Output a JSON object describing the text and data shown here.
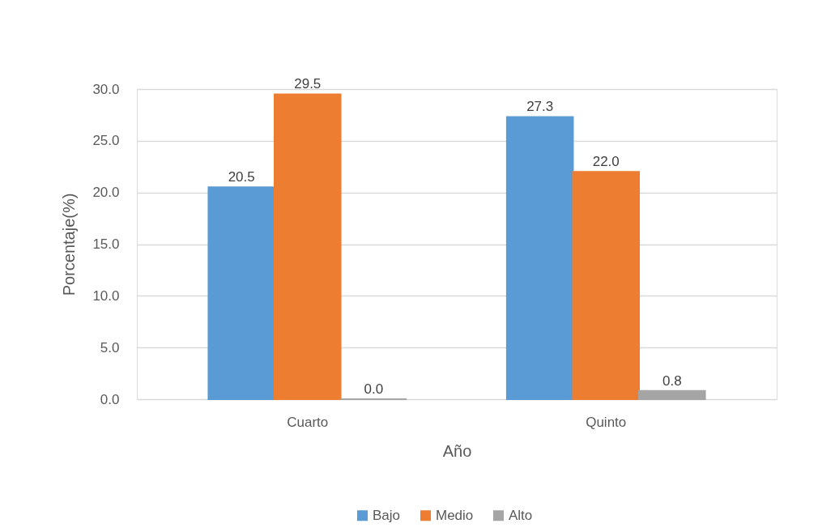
{
  "chart_data": {
    "type": "bar",
    "xlabel": "Año",
    "ylabel": "Porcentaje(%)",
    "categories": [
      "Cuarto",
      "Quinto"
    ],
    "series": [
      {
        "name": "Bajo",
        "color": "#5b9bd5",
        "values": [
          20.5,
          27.3
        ],
        "value_labels": [
          "20.5",
          "27.3"
        ]
      },
      {
        "name": "Medio",
        "color": "#ed7d31",
        "values": [
          29.5,
          22.0
        ],
        "value_labels": [
          "29.5",
          "22.0"
        ]
      },
      {
        "name": "Alto",
        "color": "#a5a5a5",
        "values": [
          0.0,
          0.8
        ],
        "value_labels": [
          "0.0",
          "0.8"
        ]
      }
    ],
    "ylim": [
      0,
      30
    ],
    "yticks": [
      {
        "value": 0,
        "label": "0.0"
      },
      {
        "value": 5,
        "label": "5.0"
      },
      {
        "value": 10,
        "label": "10.0"
      },
      {
        "value": 15,
        "label": "15.0"
      },
      {
        "value": 20,
        "label": "20.0"
      },
      {
        "value": 25,
        "label": "25.0"
      },
      {
        "value": 30,
        "label": "30.0"
      }
    ],
    "grid": "y",
    "legend": "bottom"
  }
}
